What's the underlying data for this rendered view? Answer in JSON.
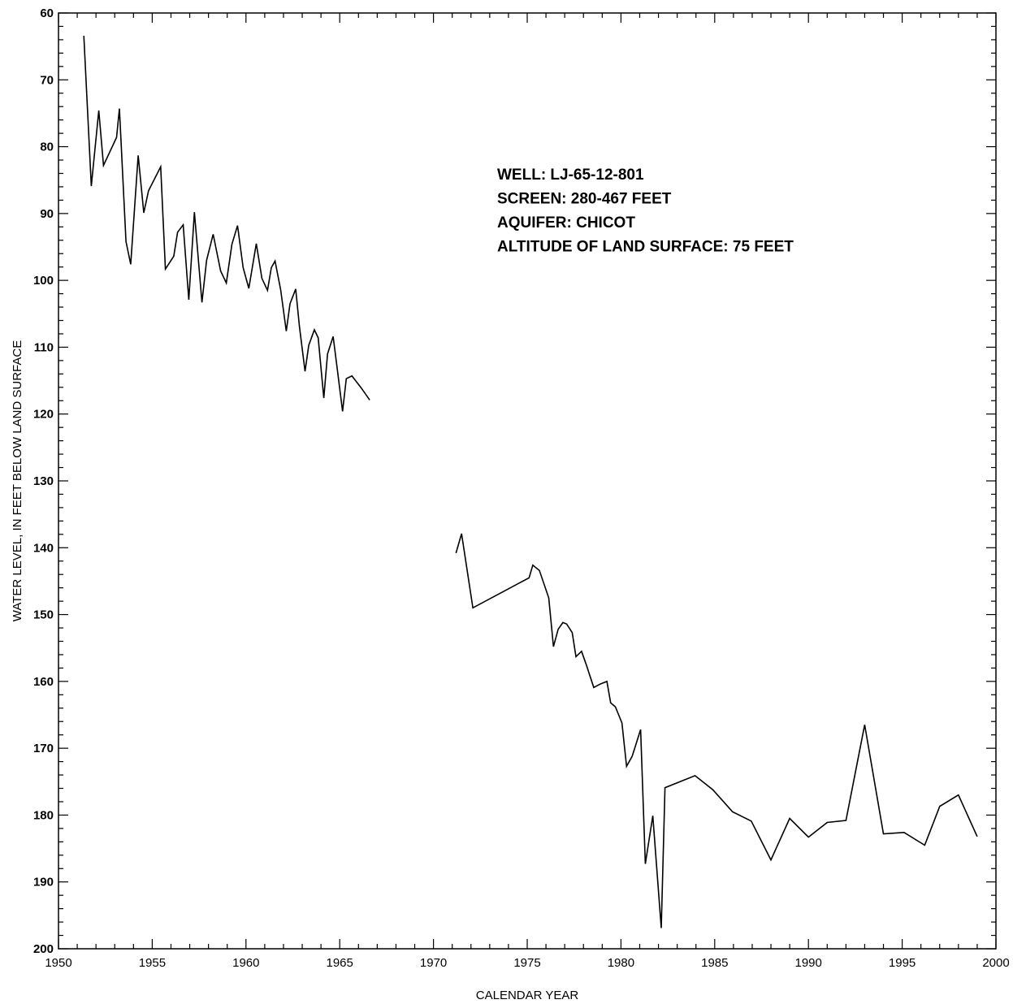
{
  "chart_data": {
    "type": "line",
    "xlabel": "CALENDAR YEAR",
    "ylabel": "WATER LEVEL, IN FEET BELOW LAND SURFACE",
    "xlim": [
      1950,
      2000
    ],
    "ylim": [
      60,
      200
    ],
    "y_inverted": true,
    "x_ticks": [
      1950,
      1955,
      1960,
      1965,
      1970,
      1975,
      1980,
      1985,
      1990,
      1995,
      2000
    ],
    "y_ticks": [
      60,
      70,
      80,
      90,
      100,
      110,
      120,
      130,
      140,
      150,
      160,
      170,
      180,
      190,
      200
    ],
    "grid": false,
    "line_color": "#000000",
    "annotations": [
      "WELL: LJ-65-12-801",
      "SCREEN: 280-467 FEET",
      "AQUIFER: CHICOT",
      "ALTITUDE OF LAND SURFACE: 75 FEET"
    ],
    "series": [
      {
        "x": [
          1951.35,
          1951.75,
          1952.15,
          1952.4,
          1953.1,
          1953.25,
          1953.6,
          1953.85,
          1954.25,
          1954.55,
          1954.8,
          1955.45,
          1955.7,
          1956.15,
          1956.35,
          1956.65,
          1956.95,
          1957.25,
          1957.65,
          1957.9,
          1958.25,
          1958.65,
          1958.95,
          1959.25,
          1959.55,
          1959.85,
          1960.15,
          1960.55,
          1960.85,
          1961.15,
          1961.35,
          1961.55,
          1961.85,
          1962.15,
          1962.35,
          1962.65,
          1962.85,
          1963.15,
          1963.35,
          1963.65,
          1963.85,
          1964.15,
          1964.35,
          1964.65,
          1964.85,
          1965.15,
          1965.35,
          1965.65,
          1966.15,
          1966.6
        ],
        "y": [
          63.4,
          85.9,
          74.6,
          82.8,
          78.6,
          74.3,
          94.2,
          97.6,
          81.3,
          89.9,
          86.6,
          83.0,
          98.3,
          96.4,
          92.8,
          91.7,
          102.9,
          89.8,
          103.3,
          97.0,
          93.1,
          98.6,
          100.4,
          94.6,
          91.8,
          98.1,
          101.2,
          94.5,
          99.7,
          101.5,
          98.1,
          97.1,
          101.4,
          107.6,
          103.5,
          101.3,
          106.9,
          113.6,
          109.7,
          107.4,
          108.6,
          117.6,
          111.0,
          108.4,
          112.8,
          119.6,
          114.7,
          114.3,
          116.1,
          117.9
        ]
      },
      {
        "x": [
          1971.2,
          1971.5,
          1972.1,
          1975.1,
          1975.3,
          1975.65,
          1976.15,
          1976.4,
          1976.65,
          1976.9,
          1977.1,
          1977.4,
          1977.6,
          1977.9,
          1978.15,
          1978.55,
          1978.9,
          1979.25,
          1979.45,
          1979.7,
          1980.05,
          1980.3,
          1980.6,
          1981.05,
          1981.3,
          1981.7,
          1982.15,
          1982.35,
          1983.95,
          1984.9,
          1985.95,
          1986.95,
          1988.0,
          1989.0,
          1990.0,
          1991.0,
          1992.0,
          1993.0,
          1994.0,
          1995.1,
          1996.2,
          1997.0,
          1998.0,
          1999.0
        ],
        "y": [
          140.8,
          137.9,
          149.0,
          144.5,
          142.6,
          143.4,
          147.5,
          154.8,
          152.2,
          151.2,
          151.4,
          152.7,
          156.3,
          155.5,
          157.5,
          160.9,
          160.4,
          160.0,
          163.2,
          163.8,
          166.2,
          172.7,
          171.2,
          167.2,
          187.3,
          180.1,
          196.9,
          175.9,
          174.1,
          176.2,
          179.5,
          180.9,
          186.7,
          180.5,
          183.3,
          181.1,
          180.8,
          166.5,
          182.8,
          182.6,
          184.5,
          178.7,
          177.0,
          183.2
        ]
      }
    ]
  }
}
